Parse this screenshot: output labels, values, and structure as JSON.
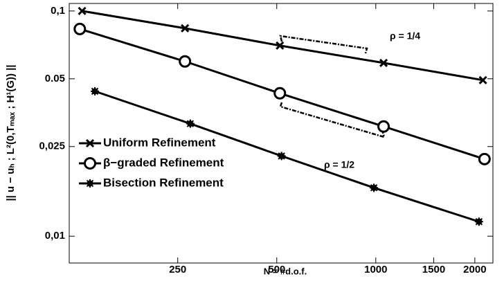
{
  "chart_data": {
    "type": "line",
    "xlabel": "N = #d.o.f.",
    "ylabel": "|| u − uₕ ; L²(0,Tₘₐₓ ; H¹(G)) ||",
    "xscale": "log",
    "yscale": "log",
    "xlim": [
      117,
      2270
    ],
    "ylim": [
      0.0076,
      0.108
    ],
    "xticks": [
      250,
      500,
      1000,
      1500,
      2000
    ],
    "yticks": [
      {
        "value": 0.1,
        "label": "0,1"
      },
      0.05,
      {
        "value": 0.025,
        "label": "0,025"
      },
      {
        "value": 0.01,
        "label": "0,01"
      }
    ],
    "legend": "lower left",
    "series": [
      {
        "name": "Uniform Refinement",
        "color": "#000000",
        "marker": "x",
        "x": [
          128,
          263,
          511,
          1056,
          2117
        ],
        "values": [
          0.1,
          0.0838,
          0.0702,
          0.0588,
          0.0493
        ]
      },
      {
        "name": "β−graded Refinement",
        "color": "#000000",
        "marker": "o",
        "x": [
          126,
          263,
          511,
          1056,
          2140
        ],
        "values": [
          0.0832,
          0.0597,
          0.0431,
          0.0307,
          0.022
        ]
      },
      {
        "name": "Bisection Refinement",
        "color": "#000000",
        "marker": "*",
        "x": [
          140,
          273,
          517,
          987,
          2059
        ],
        "values": [
          0.044,
          0.0316,
          0.0227,
          0.0164,
          0.0116
        ]
      }
    ],
    "annotations": [
      "ρ = 1/4",
      "ρ = 1/2"
    ]
  }
}
